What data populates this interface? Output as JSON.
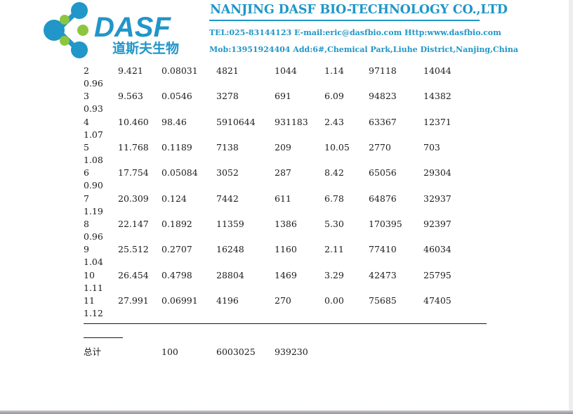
{
  "header": {
    "logo_text": "DASF",
    "logo_subtext": "道斯夫生物",
    "company_name": "NANJING DASF BIO-TECHNOLOGY CO.,LTD",
    "contact_line_1": "TEL:025-83144123  E-mail:eric@dasfbio.com  Http:www.dasfbio.com",
    "contact_line_2": "Mob:13951924404  Add:6#,Chemical Park,Liuhe District,Nanjing,China",
    "colors": {
      "brand_blue": "#2196c8",
      "brand_green": "#8cc63f"
    }
  },
  "table": {
    "rows": [
      [
        "2",
        "9.421",
        "0.08031",
        "4821",
        "1044",
        "1.14",
        "97118",
        "14044",
        "0.96"
      ],
      [
        "3",
        "9.563",
        "0.0546",
        "3278",
        "691",
        "6.09",
        "94823",
        "14382",
        "0.93"
      ],
      [
        "4",
        "10.460",
        "98.46",
        "5910644",
        "931183",
        "2.43",
        "63367",
        "12371",
        "1.07"
      ],
      [
        "5",
        "11.768",
        "0.1189",
        "7138",
        "209",
        "10.05",
        "2770",
        "703",
        "1.08"
      ],
      [
        "6",
        "17.754",
        "0.05084",
        "3052",
        "287",
        "8.42",
        "65056",
        "29304",
        "0.90"
      ],
      [
        "7",
        "20.309",
        "0.124",
        "7442",
        "611",
        "6.78",
        "64876",
        "32937",
        "1.19"
      ],
      [
        "8",
        "22.147",
        "0.1892",
        "11359",
        "1386",
        "5.30",
        "170395",
        "92397",
        "0.96"
      ],
      [
        "9",
        "25.512",
        "0.2707",
        "16248",
        "1160",
        "2.11",
        "77410",
        "46034",
        "1.04"
      ],
      [
        "10",
        "26.454",
        "0.4798",
        "28804",
        "1469",
        "3.29",
        "42473",
        "25795",
        "1.11"
      ],
      [
        "11",
        "27.991",
        "0.06991",
        "4196",
        "270",
        "0.00",
        "75685",
        "47405",
        "1.12"
      ]
    ],
    "total": {
      "label": "总计",
      "area_percent": "100",
      "area": "6003025",
      "height": "939230"
    }
  }
}
